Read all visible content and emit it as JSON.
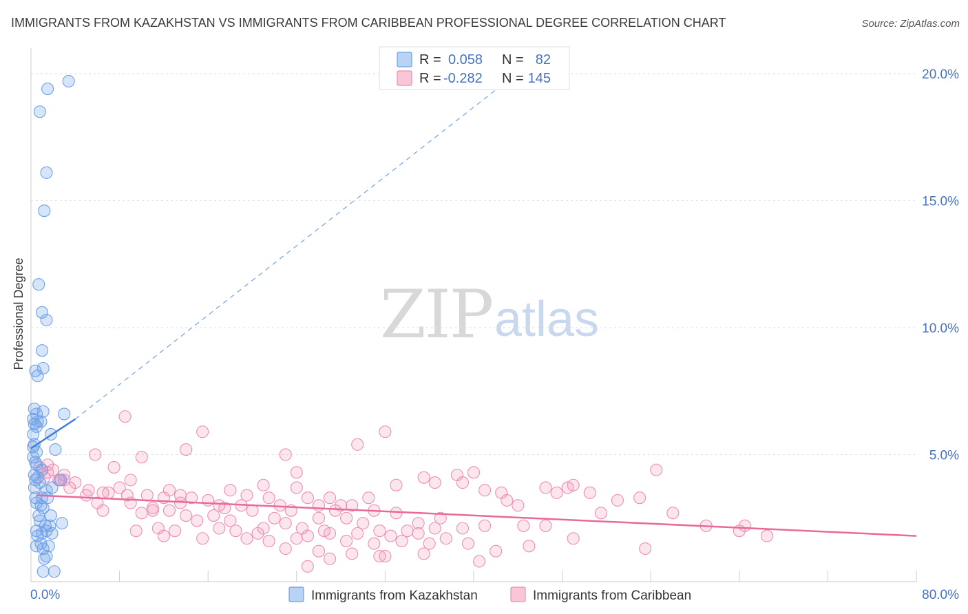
{
  "title": "IMMIGRANTS FROM KAZAKHSTAN VS IMMIGRANTS FROM CARIBBEAN PROFESSIONAL DEGREE CORRELATION CHART",
  "source": "Source: ZipAtlas.com",
  "watermark": {
    "part1": "ZIP",
    "part2": "atlas"
  },
  "legend_top": {
    "rows": [
      {
        "r_label": "R =",
        "r_value": "0.058",
        "n_label": "N =",
        "n_value": "82",
        "color": "#6fa0e8"
      },
      {
        "r_label": "R =",
        "r_value": "-0.282",
        "n_label": "N =",
        "n_value": "145",
        "color": "#f08cb2"
      }
    ]
  },
  "legend_bottom": {
    "items": [
      {
        "label": "Immigrants from Kazakhstan",
        "color": "#6fa0e8"
      },
      {
        "label": "Immigrants from Caribbean",
        "color": "#f08cb2"
      }
    ]
  },
  "chart_data": {
    "type": "scatter",
    "title": "IMMIGRANTS FROM KAZAKHSTAN VS IMMIGRANTS FROM CARIBBEAN PROFESSIONAL DEGREE CORRELATION CHART",
    "xlabel": "",
    "ylabel": "Professional Degree",
    "xlim": [
      0,
      80
    ],
    "ylim": [
      0,
      21
    ],
    "x_tick_labels": [
      "0.0%",
      "80.0%"
    ],
    "y_tick_labels": [
      "5.0%",
      "10.0%",
      "15.0%",
      "20.0%"
    ],
    "y_ticks": [
      5,
      10,
      15,
      20
    ],
    "grid": true,
    "legend_placement": "top-center",
    "series": [
      {
        "name": "Immigrants from Kazakhstan",
        "color": "#6fa0e8",
        "trend": {
          "x0": 0.0,
          "y0": 5.25,
          "x1": 4.0,
          "y1": 6.4,
          "dashed_to_x": 43.0,
          "dashed_to_y": 19.7
        },
        "points": [
          [
            3.4,
            19.7
          ],
          [
            1.5,
            19.4
          ],
          [
            0.8,
            18.5
          ],
          [
            1.4,
            16.1
          ],
          [
            1.2,
            14.6
          ],
          [
            0.7,
            11.7
          ],
          [
            1.0,
            10.6
          ],
          [
            1.4,
            10.3
          ],
          [
            1.0,
            9.1
          ],
          [
            1.1,
            8.4
          ],
          [
            0.4,
            8.3
          ],
          [
            0.6,
            8.1
          ],
          [
            0.3,
            6.8
          ],
          [
            0.5,
            6.6
          ],
          [
            1.1,
            6.7
          ],
          [
            3.0,
            6.6
          ],
          [
            0.2,
            6.4
          ],
          [
            0.6,
            6.3
          ],
          [
            0.9,
            6.3
          ],
          [
            0.3,
            6.2
          ],
          [
            0.5,
            6.1
          ],
          [
            0.2,
            5.8
          ],
          [
            1.8,
            5.8
          ],
          [
            0.3,
            5.4
          ],
          [
            0.2,
            5.3
          ],
          [
            0.5,
            5.1
          ],
          [
            2.2,
            5.2
          ],
          [
            0.2,
            4.9
          ],
          [
            0.4,
            4.7
          ],
          [
            0.5,
            4.6
          ],
          [
            1.0,
            4.4
          ],
          [
            0.3,
            4.2
          ],
          [
            0.6,
            4.1
          ],
          [
            0.4,
            4.0
          ],
          [
            0.8,
            3.9
          ],
          [
            2.7,
            4.0
          ],
          [
            0.3,
            3.7
          ],
          [
            1.4,
            3.6
          ],
          [
            1.9,
            3.7
          ],
          [
            0.4,
            3.3
          ],
          [
            1.0,
            3.3
          ],
          [
            1.5,
            3.3
          ],
          [
            0.5,
            3.1
          ],
          [
            0.9,
            3.0
          ],
          [
            1.1,
            2.9
          ],
          [
            0.7,
            2.6
          ],
          [
            1.8,
            2.6
          ],
          [
            0.8,
            2.4
          ],
          [
            0.5,
            2.0
          ],
          [
            1.3,
            2.2
          ],
          [
            1.7,
            2.2
          ],
          [
            2.8,
            2.3
          ],
          [
            0.6,
            1.8
          ],
          [
            1.0,
            1.9
          ],
          [
            1.4,
            2.0
          ],
          [
            1.9,
            1.9
          ],
          [
            0.9,
            1.5
          ],
          [
            1.1,
            1.3
          ],
          [
            0.5,
            1.4
          ],
          [
            1.6,
            1.4
          ],
          [
            1.4,
            1.0
          ],
          [
            1.2,
            0.9
          ],
          [
            1.1,
            0.4
          ],
          [
            2.1,
            0.4
          ]
        ]
      },
      {
        "name": "Immigrants from Caribbean",
        "color": "#f08cb2",
        "trend": {
          "x0": 0.5,
          "y0": 3.4,
          "x1": 80.0,
          "y1": 1.8
        },
        "points": [
          [
            8.5,
            6.5
          ],
          [
            15.5,
            5.9
          ],
          [
            32.0,
            5.9
          ],
          [
            29.5,
            5.4
          ],
          [
            14.0,
            5.2
          ],
          [
            23.0,
            5.0
          ],
          [
            5.8,
            5.0
          ],
          [
            10.0,
            4.9
          ],
          [
            1.5,
            4.6
          ],
          [
            0.8,
            4.5
          ],
          [
            2.0,
            4.4
          ],
          [
            7.5,
            4.5
          ],
          [
            24.0,
            4.3
          ],
          [
            35.5,
            4.1
          ],
          [
            38.5,
            4.2
          ],
          [
            40.0,
            4.3
          ],
          [
            56.5,
            4.4
          ],
          [
            1.5,
            4.3
          ],
          [
            2.6,
            4.0
          ],
          [
            3.0,
            4.0
          ],
          [
            4.0,
            3.9
          ],
          [
            21.0,
            3.8
          ],
          [
            33.0,
            3.8
          ],
          [
            36.5,
            3.9
          ],
          [
            39.0,
            3.9
          ],
          [
            46.5,
            3.7
          ],
          [
            48.5,
            3.7
          ],
          [
            49.0,
            3.8
          ],
          [
            24.0,
            3.7
          ],
          [
            8.0,
            3.7
          ],
          [
            3.5,
            3.7
          ],
          [
            5.2,
            3.6
          ],
          [
            6.5,
            3.5
          ],
          [
            7.0,
            3.5
          ],
          [
            12.5,
            3.6
          ],
          [
            18.0,
            3.6
          ],
          [
            41.0,
            3.6
          ],
          [
            42.5,
            3.5
          ],
          [
            47.5,
            3.5
          ],
          [
            50.5,
            3.5
          ],
          [
            5.0,
            3.4
          ],
          [
            8.7,
            3.4
          ],
          [
            10.5,
            3.4
          ],
          [
            12.0,
            3.3
          ],
          [
            14.5,
            3.3
          ],
          [
            21.5,
            3.3
          ],
          [
            25.0,
            3.3
          ],
          [
            27.0,
            3.3
          ],
          [
            30.5,
            3.3
          ],
          [
            43.0,
            3.2
          ],
          [
            53.0,
            3.2
          ],
          [
            55.0,
            3.3
          ],
          [
            6.0,
            3.1
          ],
          [
            9.0,
            3.1
          ],
          [
            13.5,
            3.1
          ],
          [
            17.0,
            3.0
          ],
          [
            19.0,
            3.0
          ],
          [
            22.5,
            3.0
          ],
          [
            26.0,
            3.0
          ],
          [
            29.0,
            3.0
          ],
          [
            44.0,
            3.0
          ],
          [
            6.5,
            2.8
          ],
          [
            11.0,
            2.8
          ],
          [
            12.5,
            2.8
          ],
          [
            17.5,
            2.9
          ],
          [
            20.0,
            2.8
          ],
          [
            23.5,
            2.8
          ],
          [
            27.5,
            2.8
          ],
          [
            31.0,
            2.8
          ],
          [
            33.0,
            2.7
          ],
          [
            10.0,
            2.7
          ],
          [
            14.0,
            2.6
          ],
          [
            16.5,
            2.6
          ],
          [
            22.0,
            2.5
          ],
          [
            26.0,
            2.5
          ],
          [
            28.5,
            2.5
          ],
          [
            37.0,
            2.5
          ],
          [
            51.5,
            2.7
          ],
          [
            58.0,
            2.7
          ],
          [
            15.0,
            2.4
          ],
          [
            18.0,
            2.4
          ],
          [
            23.0,
            2.3
          ],
          [
            30.0,
            2.3
          ],
          [
            35.0,
            2.3
          ],
          [
            41.0,
            2.2
          ],
          [
            44.5,
            2.2
          ],
          [
            61.0,
            2.2
          ],
          [
            64.5,
            2.2
          ],
          [
            11.5,
            2.1
          ],
          [
            17.0,
            2.1
          ],
          [
            21.0,
            2.1
          ],
          [
            24.5,
            2.1
          ],
          [
            26.5,
            2.0
          ],
          [
            31.5,
            2.0
          ],
          [
            34.0,
            2.0
          ],
          [
            36.5,
            2.1
          ],
          [
            39.0,
            2.1
          ],
          [
            46.5,
            2.2
          ],
          [
            9.5,
            2.0
          ],
          [
            13.0,
            2.0
          ],
          [
            18.5,
            2.0
          ],
          [
            20.5,
            1.9
          ],
          [
            25.0,
            1.8
          ],
          [
            27.0,
            1.9
          ],
          [
            29.5,
            1.9
          ],
          [
            32.5,
            1.8
          ],
          [
            35.0,
            1.9
          ],
          [
            37.5,
            1.7
          ],
          [
            49.0,
            1.7
          ],
          [
            64.0,
            2.0
          ],
          [
            66.5,
            1.8
          ],
          [
            12.0,
            1.8
          ],
          [
            15.5,
            1.7
          ],
          [
            19.5,
            1.7
          ],
          [
            21.5,
            1.6
          ],
          [
            24.0,
            1.7
          ],
          [
            28.5,
            1.6
          ],
          [
            31.0,
            1.5
          ],
          [
            33.5,
            1.6
          ],
          [
            36.0,
            1.5
          ],
          [
            39.5,
            1.5
          ],
          [
            45.0,
            1.4
          ],
          [
            55.5,
            1.3
          ],
          [
            23.0,
            1.3
          ],
          [
            26.0,
            1.2
          ],
          [
            29.0,
            1.1
          ],
          [
            32.0,
            1.0
          ],
          [
            35.5,
            1.1
          ],
          [
            42.0,
            1.2
          ],
          [
            27.0,
            0.9
          ],
          [
            31.5,
            1.0
          ],
          [
            40.5,
            0.8
          ],
          [
            25.0,
            0.6
          ],
          [
            1.2,
            4.1
          ],
          [
            3.0,
            4.2
          ],
          [
            2.5,
            4.0
          ],
          [
            1.0,
            4.4
          ],
          [
            9.0,
            4.0
          ],
          [
            11.0,
            2.9
          ],
          [
            13.5,
            3.4
          ],
          [
            16.0,
            3.2
          ],
          [
            19.5,
            3.4
          ],
          [
            28.0,
            3.0
          ]
        ]
      }
    ]
  }
}
